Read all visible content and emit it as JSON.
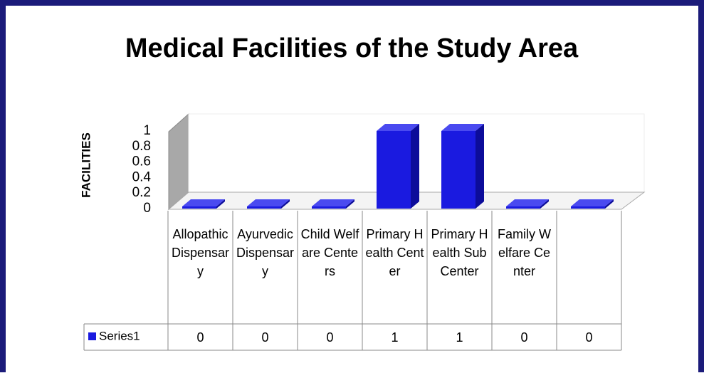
{
  "chart_data": {
    "type": "bar3d",
    "title": "Medical Facilities of the Study Area",
    "y_label": "FACILITIES",
    "categories": [
      "Allopathic Dispensary",
      "Ayurvedic Dispensary",
      "Child Welfare Centers",
      "Primary Health Center",
      "Primary Health Sub Center",
      "Family Welfare Center",
      null
    ],
    "series": [
      {
        "name": "Series1",
        "color": "#1a1ae0",
        "values": [
          0,
          0,
          0,
          1,
          1,
          0,
          0
        ]
      }
    ],
    "ylim": [
      0,
      1
    ],
    "yticks": [
      0,
      0.2,
      0.4,
      0.6,
      0.8,
      1
    ],
    "data_table": true
  }
}
